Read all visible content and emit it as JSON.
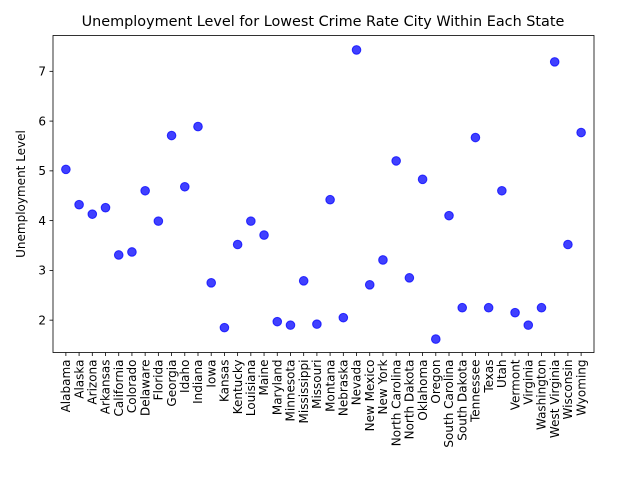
{
  "chart_data": {
    "type": "scatter",
    "title": "Unemployment Level for Lowest Crime Rate City Within Each State",
    "xlabel": "",
    "ylabel": "Unemployment Level",
    "categories": [
      "Alabama",
      "Alaska",
      "Arizona",
      "Arkansas",
      "California",
      "Colorado",
      "Delaware",
      "Florida",
      "Georgia",
      "Idaho",
      "Indiana",
      "Iowa",
      "Kansas",
      "Kentucky",
      "Louisiana",
      "Maine",
      "Maryland",
      "Minnesota",
      "Mississippi",
      "Missouri",
      "Montana",
      "Nebraska",
      "Nevada",
      "New Mexico",
      "New York",
      "North Carolina",
      "North Dakota",
      "Oklahoma",
      "Oregon",
      "South Carolina",
      "South Dakota",
      "Tennessee",
      "Texas",
      "Utah",
      "Vermont",
      "Virginia",
      "Washington",
      "West Virginia",
      "Wisconsin",
      "Wyoming"
    ],
    "values": [
      5.03,
      4.32,
      4.13,
      4.26,
      3.31,
      3.37,
      4.6,
      3.99,
      5.71,
      4.68,
      5.89,
      2.75,
      1.85,
      3.52,
      3.99,
      3.71,
      1.97,
      1.9,
      2.79,
      1.92,
      4.42,
      2.05,
      7.43,
      2.71,
      3.21,
      5.2,
      2.85,
      4.83,
      1.62,
      4.1,
      2.25,
      5.67,
      2.25,
      4.6,
      2.15,
      1.9,
      2.25,
      7.19,
      3.52,
      5.77
    ],
    "ylim": [
      1.35,
      7.72
    ],
    "yticks": [
      "2",
      "3",
      "4",
      "5",
      "6",
      "7"
    ],
    "marker_color": "#0000ff",
    "grid": false
  }
}
